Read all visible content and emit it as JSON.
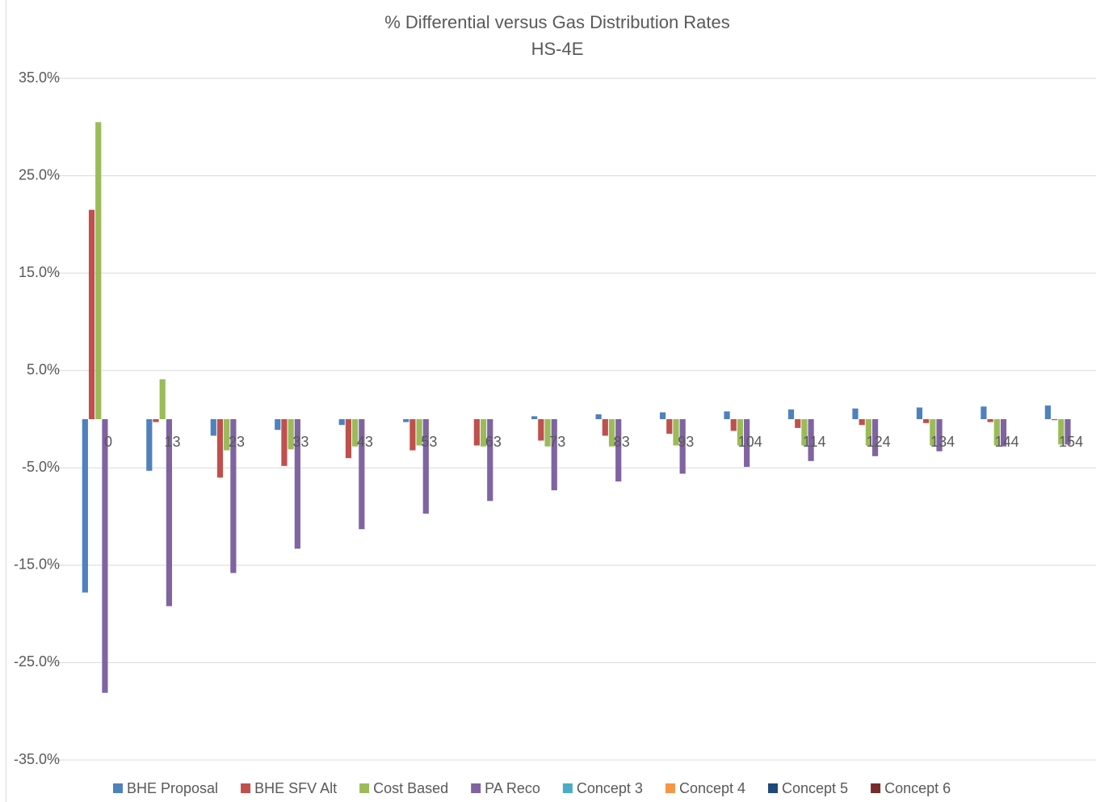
{
  "chart_data": {
    "type": "bar",
    "title": "% Differential versus Gas Distribution Rates",
    "subtitle": "HS-4E",
    "categories": [
      "0",
      "13",
      "23",
      "33",
      "43",
      "53",
      "63",
      "73",
      "83",
      "93",
      "104",
      "114",
      "124",
      "134",
      "144",
      "154"
    ],
    "series": [
      {
        "name": "BHE Proposal",
        "color": "#4f81bd",
        "values": [
          -17.8,
          -5.3,
          -1.7,
          -1.1,
          -0.6,
          -0.3,
          0.0,
          0.3,
          0.5,
          0.7,
          0.8,
          1.0,
          1.1,
          1.2,
          1.3,
          1.4
        ]
      },
      {
        "name": "BHE SFV Alt",
        "color": "#c0504d",
        "values": [
          21.5,
          -0.3,
          -6.0,
          -4.8,
          -4.0,
          -3.2,
          -2.7,
          -2.2,
          -1.7,
          -1.5,
          -1.2,
          -0.9,
          -0.6,
          -0.4,
          -0.3,
          -0.1
        ]
      },
      {
        "name": "Cost Based",
        "color": "#9bbb59",
        "values": [
          30.5,
          4.1,
          -3.2,
          -3.1,
          -2.8,
          -2.7,
          -2.8,
          -2.8,
          -2.8,
          -2.7,
          -2.7,
          -2.7,
          -2.7,
          -2.7,
          -2.7,
          -2.6
        ]
      },
      {
        "name": "PA Reco",
        "color": "#8064a2",
        "values": [
          -28.1,
          -19.2,
          -15.8,
          -13.3,
          -11.3,
          -9.7,
          -8.4,
          -7.3,
          -6.4,
          -5.6,
          -4.9,
          -4.3,
          -3.8,
          -3.3,
          -2.8,
          -2.6
        ]
      },
      {
        "name": "Concept 3",
        "color": "#4bacc6",
        "values": [
          null,
          null,
          null,
          null,
          null,
          null,
          null,
          null,
          null,
          null,
          null,
          null,
          null,
          null,
          null,
          null
        ]
      },
      {
        "name": "Concept 4",
        "color": "#f79646",
        "values": [
          null,
          null,
          null,
          null,
          null,
          null,
          null,
          null,
          null,
          null,
          null,
          null,
          null,
          null,
          null,
          null
        ]
      },
      {
        "name": "Concept 5",
        "color": "#1f497d",
        "values": [
          null,
          null,
          null,
          null,
          null,
          null,
          null,
          null,
          null,
          null,
          null,
          null,
          null,
          null,
          null,
          null
        ]
      },
      {
        "name": "Concept 6",
        "color": "#772c2a",
        "values": [
          null,
          null,
          null,
          null,
          null,
          null,
          null,
          null,
          null,
          null,
          null,
          null,
          null,
          null,
          null,
          null
        ]
      }
    ],
    "ylim": [
      -35,
      35
    ],
    "yticks": [
      {
        "value": -35,
        "label": "-35.0%"
      },
      {
        "value": -25,
        "label": "-25.0%"
      },
      {
        "value": -15,
        "label": "-15.0%"
      },
      {
        "value": -5,
        "label": "-5.0%"
      },
      {
        "value": 5,
        "label": "5.0%"
      },
      {
        "value": 15,
        "label": "15.0%"
      },
      {
        "value": 25,
        "label": "25.0%"
      },
      {
        "value": 35,
        "label": "35.0%"
      }
    ],
    "grid": true,
    "legend": "bottom"
  }
}
